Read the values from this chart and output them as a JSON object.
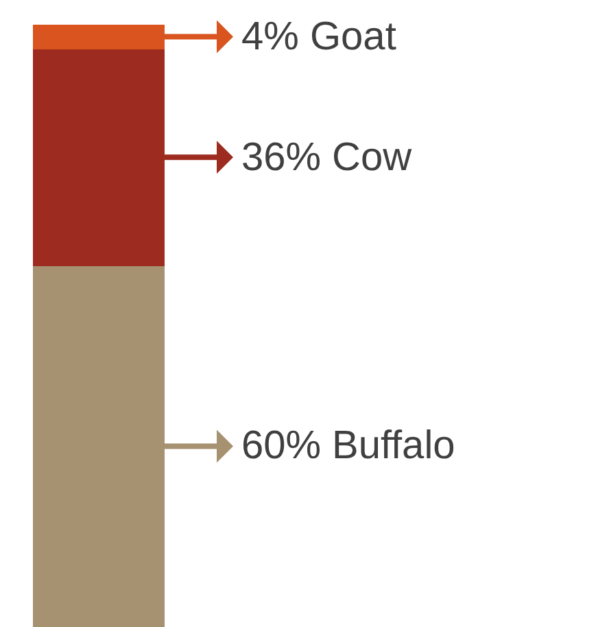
{
  "chart_data": {
    "type": "bar",
    "stacked": true,
    "categories": [
      null
    ],
    "legend": "right",
    "series": [
      {
        "name": "Buffalo",
        "color": "#a69170",
        "values": [
          60
        ],
        "value_labels": [
          "60%"
        ]
      },
      {
        "name": "Cow",
        "color": "#9e2b1f",
        "values": [
          36
        ],
        "value_labels": [
          "36%"
        ]
      },
      {
        "name": "Goat",
        "color": "#d9541e",
        "values": [
          4
        ],
        "value_labels": [
          "4%"
        ]
      }
    ]
  }
}
